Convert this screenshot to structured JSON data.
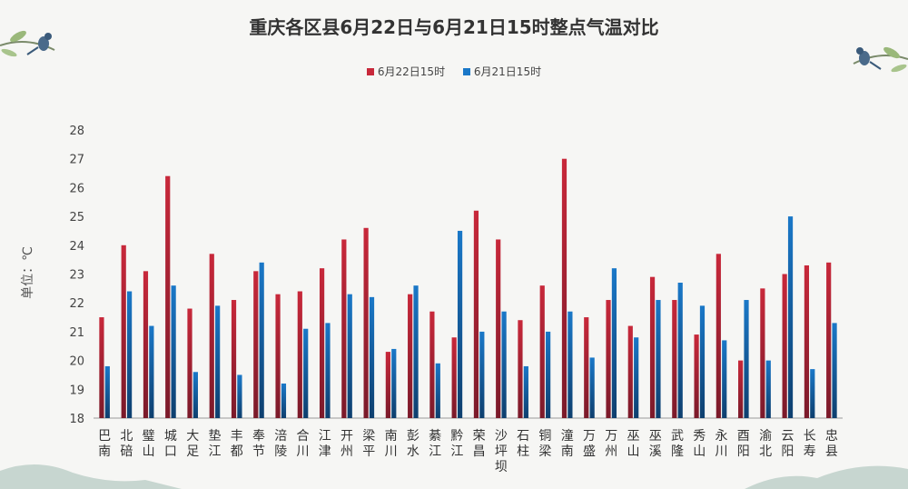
{
  "chart_data": {
    "type": "bar",
    "title": "重庆各区县6月22日与6月21日15时整点气温对比",
    "ylabel": "单位：℃",
    "ylim": [
      18,
      28
    ],
    "yticks": [
      18,
      19,
      20,
      21,
      22,
      23,
      24,
      25,
      26,
      27,
      28
    ],
    "legend_position": "top-center",
    "grid": false,
    "categories": [
      "巴南",
      "北碚",
      "璧山",
      "城口",
      "大足",
      "垫江",
      "丰都",
      "奉节",
      "涪陵",
      "合川",
      "江津",
      "开州",
      "梁平",
      "南川",
      "彭水",
      "綦江",
      "黔江",
      "荣昌",
      "沙坪坝",
      "石柱",
      "铜梁",
      "潼南",
      "万盛",
      "万州",
      "巫山",
      "巫溪",
      "武隆",
      "秀山",
      "永川",
      "酉阳",
      "渝北",
      "云阳",
      "长寿",
      "忠县"
    ],
    "series": [
      {
        "name": "6月22日15时",
        "color": "#c8283a",
        "values": [
          21.5,
          24.0,
          23.1,
          26.4,
          21.8,
          23.7,
          22.1,
          23.1,
          22.3,
          22.4,
          23.2,
          24.2,
          24.6,
          20.3,
          22.3,
          21.7,
          20.8,
          25.2,
          24.2,
          21.4,
          22.6,
          27.0,
          21.5,
          22.1,
          21.2,
          22.9,
          22.1,
          20.9,
          23.7,
          20.0,
          22.5,
          23.0,
          23.3,
          23.4
        ]
      },
      {
        "name": "6月21日15时",
        "color": "#1a78c8",
        "values": [
          19.8,
          22.4,
          21.2,
          22.6,
          19.6,
          21.9,
          19.5,
          23.4,
          19.2,
          21.1,
          21.3,
          22.3,
          22.2,
          20.4,
          22.6,
          19.9,
          24.5,
          21.0,
          21.7,
          19.8,
          21.0,
          21.7,
          20.1,
          23.2,
          20.8,
          22.1,
          22.7,
          21.9,
          20.7,
          22.1,
          20.0,
          25.0,
          19.7,
          21.3
        ]
      }
    ]
  }
}
